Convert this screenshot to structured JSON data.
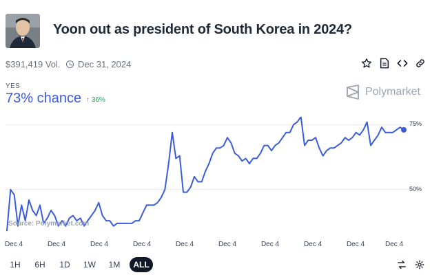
{
  "market": {
    "title": "Yoon out as president of South Korea in 2024?",
    "volume": "$391,419 Vol.",
    "end_date": "Dec 31, 2024"
  },
  "outcome": {
    "label": "YES",
    "chance": "73% chance",
    "change": "↑ 36%",
    "change_color": "#22a35a",
    "accent_color": "#3b5bdb"
  },
  "brand": {
    "name": "Polymarket"
  },
  "actions": [
    "star-icon",
    "document-icon",
    "embed-code-icon",
    "link-icon"
  ],
  "chart_data": {
    "type": "line",
    "source": "Source: Polymarket.com",
    "x_tick_labels": [
      "Dec 4",
      "Dec 4",
      "Dec 4",
      "Dec 4",
      "Dec 4",
      "Dec 4",
      "Dec 4",
      "Dec 4",
      "Dec 4",
      "Dec 4"
    ],
    "y_tick_labels": [
      "75%",
      "50%"
    ],
    "ylim": [
      33,
      78
    ],
    "grid": true,
    "series": [
      {
        "color": "#3b5bdb",
        "values": [
          34,
          50,
          48,
          36,
          44,
          38,
          46,
          42,
          40,
          44,
          37,
          39,
          42,
          40,
          36,
          38,
          36,
          39,
          40,
          38,
          39,
          36,
          38,
          40,
          42,
          45,
          40,
          38,
          38,
          36,
          37,
          37,
          37,
          37,
          37,
          38,
          38,
          41,
          44,
          44,
          44,
          45,
          47,
          50,
          60,
          72,
          62,
          63,
          49,
          49,
          51,
          55,
          53,
          53,
          57,
          60,
          64,
          66,
          66,
          67,
          70,
          68,
          64,
          63,
          61,
          62,
          60,
          62,
          62,
          64,
          67,
          67,
          65,
          67,
          68,
          70,
          72,
          72,
          75,
          76,
          78,
          67,
          69,
          69,
          70,
          66,
          63,
          65,
          66,
          66,
          67,
          68,
          70,
          69,
          70,
          72,
          71,
          73,
          76,
          67,
          69,
          71,
          74,
          72,
          72,
          72,
          73,
          74,
          73
        ]
      }
    ]
  },
  "ranges": [
    "1H",
    "6H",
    "1D",
    "1W",
    "1M",
    "ALL"
  ],
  "active_range": "ALL"
}
